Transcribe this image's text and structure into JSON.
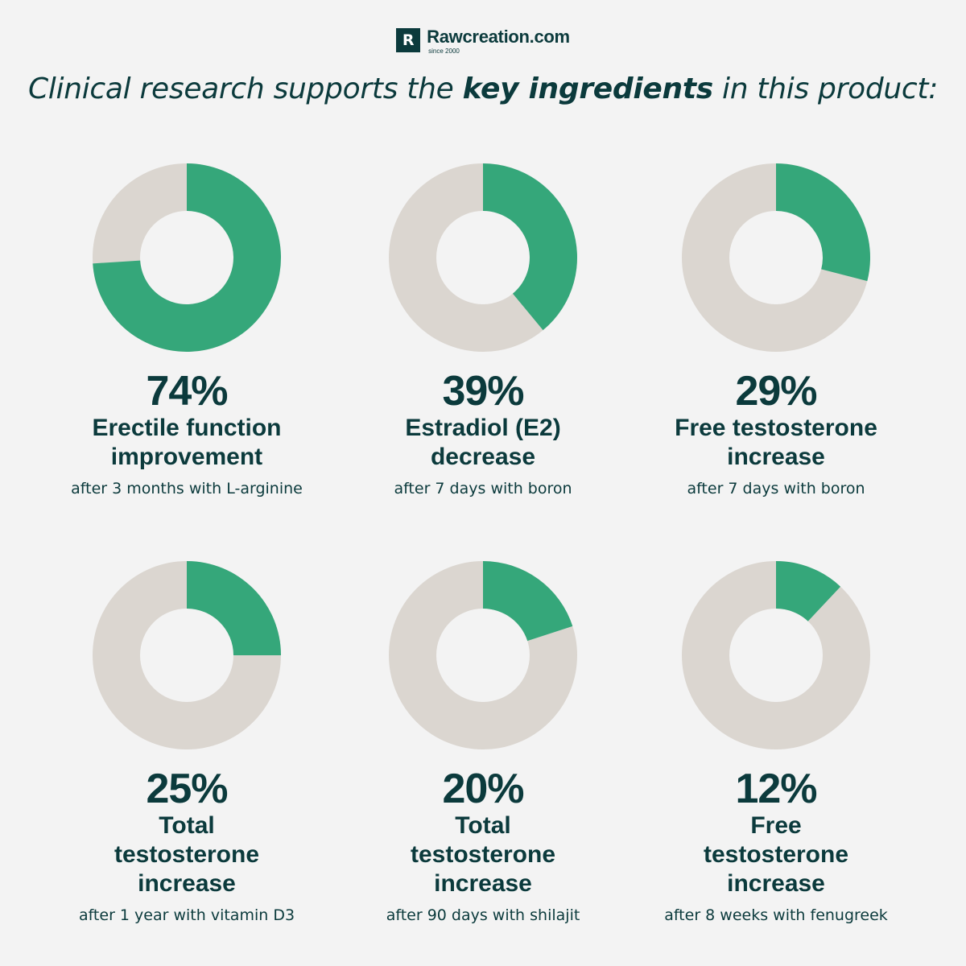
{
  "brand": {
    "letter": "R",
    "name": "Rawcreation.com",
    "since": "since 2000"
  },
  "headline": {
    "part1": "Clinical research supports the ",
    "bold1": "key ingredients",
    "part2": " in this product:"
  },
  "colors": {
    "accent": "#35a77a",
    "track": "#dbd6d0",
    "text": "#0b3a3c",
    "background": "#f3f3f3"
  },
  "chart_data": [
    {
      "type": "pie",
      "value": 74,
      "percent_label": "74%",
      "title": "Erectile function improvement",
      "caption": "after 3 months with L-arginine"
    },
    {
      "type": "pie",
      "value": 39,
      "percent_label": "39%",
      "title": "Estradiol (E2) decrease",
      "caption": "after 7 days with boron"
    },
    {
      "type": "pie",
      "value": 29,
      "percent_label": "29%",
      "title": "Free testosterone increase",
      "caption": "after 7 days with boron"
    },
    {
      "type": "pie",
      "value": 25,
      "percent_label": "25%",
      "title": "Total testosterone increase",
      "caption": "after 1 year with vitamin D3"
    },
    {
      "type": "pie",
      "value": 20,
      "percent_label": "20%",
      "title": "Total testosterone increase",
      "caption": "after 90 days with shilajit"
    },
    {
      "type": "pie",
      "value": 12,
      "percent_label": "12%",
      "title": "Free testosterone increase",
      "caption": "after 8 weeks with fenugreek"
    }
  ]
}
